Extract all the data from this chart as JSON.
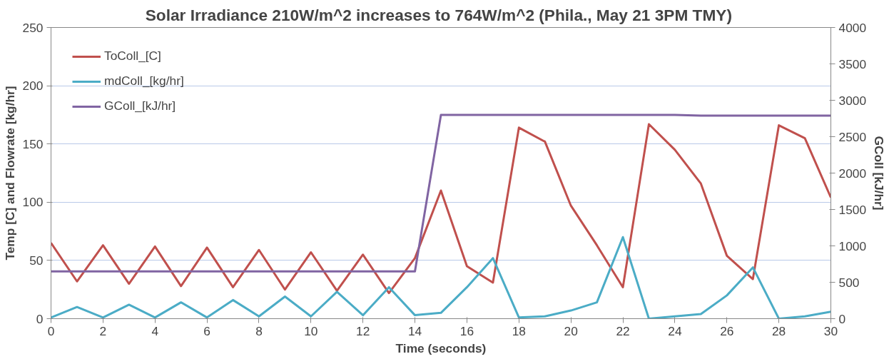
{
  "chart_data": {
    "type": "line",
    "title": "Solar Irradiance 210W/m^2  increases to 764W/m^2 (Phila., May 21 3PM TMY)",
    "xlabel": "Time (seconds)",
    "ylabel": "Temp [C] and Flowrate [kg/hr]",
    "y2label": "GColl [kJ/hr]",
    "x": [
      0,
      1,
      2,
      3,
      4,
      5,
      6,
      7,
      8,
      9,
      10,
      11,
      12,
      13,
      14,
      15,
      16,
      17,
      18,
      19,
      20,
      21,
      22,
      23,
      24,
      25,
      26,
      27,
      28,
      29,
      30
    ],
    "series": [
      {
        "name": "ToColl_[C]",
        "color": "#c0504d",
        "values": [
          65,
          32,
          63,
          30,
          62,
          28,
          61,
          27,
          59,
          25,
          57,
          24,
          55,
          22,
          52,
          110,
          45,
          31,
          164,
          152,
          97,
          63,
          27,
          167,
          145,
          116,
          54,
          34,
          166,
          155,
          104
        ]
      },
      {
        "name": "mdColl_[kg/hr]",
        "color": "#4bacc6",
        "values": [
          1,
          10,
          1,
          12,
          1,
          14,
          1,
          16,
          2,
          19,
          2,
          23,
          3,
          27,
          3,
          5,
          27,
          52,
          1,
          2,
          7,
          14,
          70,
          0,
          2,
          4,
          20,
          44,
          0,
          2,
          6
        ]
      },
      {
        "name": "GColl_[kJ/hr]",
        "color": "#8064a2",
        "axis": "y2",
        "values": [
          650,
          650,
          650,
          650,
          650,
          650,
          650,
          650,
          650,
          650,
          650,
          650,
          650,
          650,
          650,
          2800,
          2800,
          2800,
          2800,
          2800,
          2800,
          2800,
          2800,
          2800,
          2800,
          2790,
          2790,
          2790,
          2790,
          2790,
          2790
        ]
      }
    ],
    "xlim": [
      0,
      30
    ],
    "xticks": [
      0,
      2,
      4,
      6,
      8,
      10,
      12,
      14,
      16,
      18,
      20,
      22,
      24,
      26,
      28,
      30
    ],
    "ylim": [
      0,
      250
    ],
    "yticks": [
      0,
      50,
      100,
      150,
      200,
      250
    ],
    "y2lim": [
      0,
      4000
    ],
    "y2ticks": [
      0,
      500,
      1000,
      1500,
      2000,
      2500,
      3000,
      3500,
      4000
    ],
    "grid": "y",
    "legend": "top left",
    "marker": "none",
    "line_style": "solid"
  }
}
